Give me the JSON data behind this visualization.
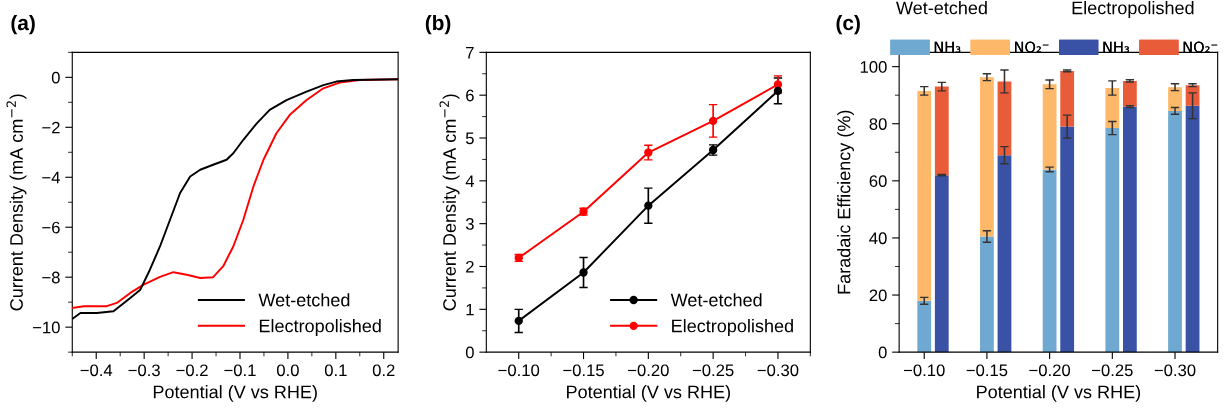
{
  "chart_data": [
    {
      "type": "line",
      "title": "(a)",
      "xlabel": "Potential (V vs RHE)",
      "ylabel": "Current Density (mA cm$^{−2}$)",
      "legend": "bottom right",
      "xlim": [
        -0.45,
        0.23
      ],
      "ylim": [
        -11,
        1
      ],
      "xticks": [
        {
          "value": -0.45,
          "label": null
        },
        {
          "value": -0.4,
          "label": "−0.4"
        },
        {
          "value": -0.35,
          "label": null
        },
        {
          "value": -0.3,
          "label": "−0.3"
        },
        {
          "value": -0.25,
          "label": null
        },
        {
          "value": -0.2,
          "label": "−0.2"
        },
        {
          "value": -0.15,
          "label": null
        },
        {
          "value": -0.1,
          "label": "−0.1"
        },
        {
          "value": -0.05,
          "label": null
        },
        {
          "value": 0.0,
          "label": "0.0"
        },
        {
          "value": 0.05,
          "label": null
        },
        {
          "value": 0.1,
          "label": "0.1"
        },
        {
          "value": 0.15,
          "label": null
        },
        {
          "value": 0.2,
          "label": "0.2"
        }
      ],
      "yticks": [
        {
          "value": -11,
          "label": null
        },
        {
          "value": -10,
          "label": "−10"
        },
        {
          "value": -9,
          "label": null
        },
        {
          "value": -8,
          "label": "−8"
        },
        {
          "value": -7,
          "label": null
        },
        {
          "value": -6,
          "label": "−6"
        },
        {
          "value": -5,
          "label": null
        },
        {
          "value": -4,
          "label": "−4"
        },
        {
          "value": -3,
          "label": null
        },
        {
          "value": -2,
          "label": "−2"
        },
        {
          "value": -1,
          "label": null
        },
        {
          "value": 0,
          "label": "0"
        },
        {
          "value": 1,
          "label": null
        }
      ],
      "series": [
        {
          "name": "Wet-etched",
          "color": "#000000",
          "x": [
            -0.45,
            -0.433,
            -0.399,
            -0.364,
            -0.329,
            -0.308,
            -0.288,
            -0.267,
            -0.246,
            -0.225,
            -0.204,
            -0.183,
            -0.156,
            -0.128,
            -0.114,
            -0.093,
            -0.065,
            -0.038,
            -0.003,
            0.039,
            0.074,
            0.101,
            0.136,
            0.23
          ],
          "values": [
            -9.67,
            -9.43,
            -9.43,
            -9.36,
            -8.83,
            -8.5,
            -7.7,
            -6.77,
            -5.7,
            -4.63,
            -3.97,
            -3.7,
            -3.5,
            -3.3,
            -3.04,
            -2.5,
            -1.84,
            -1.3,
            -0.91,
            -0.57,
            -0.31,
            -0.17,
            -0.11,
            -0.08
          ]
        },
        {
          "name": "Electropolished",
          "color": "#ff0000",
          "x": [
            -0.45,
            -0.426,
            -0.378,
            -0.357,
            -0.329,
            -0.301,
            -0.267,
            -0.239,
            -0.211,
            -0.183,
            -0.156,
            -0.135,
            -0.114,
            -0.093,
            -0.072,
            -0.051,
            -0.024,
            0.004,
            0.039,
            0.074,
            0.108,
            0.15,
            0.23
          ],
          "values": [
            -9.23,
            -9.16,
            -9.16,
            -9.03,
            -8.63,
            -8.3,
            -7.99,
            -7.8,
            -7.9,
            -8.03,
            -8.0,
            -7.56,
            -6.77,
            -5.7,
            -4.37,
            -3.3,
            -2.24,
            -1.5,
            -0.91,
            -0.44,
            -0.21,
            -0.11,
            -0.08
          ]
        }
      ]
    },
    {
      "type": "line",
      "title": "(b)",
      "xlabel": "Potential (V vs RHE)",
      "ylabel": "Current Density (mA cm$^{−2}$)",
      "legend": "bottom right",
      "marker": "circle",
      "line_style": "solid",
      "x": [
        -0.1,
        -0.15,
        -0.2,
        -0.25,
        -0.3
      ],
      "xlim": [
        -0.075,
        -0.325
      ],
      "ylim": [
        0,
        7
      ],
      "xticks": [
        {
          "value": -0.1,
          "label": "−0.10"
        },
        {
          "value": -0.125,
          "label": null
        },
        {
          "value": -0.15,
          "label": "−0.15"
        },
        {
          "value": -0.175,
          "label": null
        },
        {
          "value": -0.2,
          "label": "−0.20"
        },
        {
          "value": -0.225,
          "label": null
        },
        {
          "value": -0.25,
          "label": "−0.25"
        },
        {
          "value": -0.275,
          "label": null
        },
        {
          "value": -0.3,
          "label": "−0.30"
        },
        {
          "value": -0.325,
          "label": null
        }
      ],
      "yticks": [
        0,
        {
          "value": 0.5,
          "label": null
        },
        1,
        {
          "value": 1.5,
          "label": null
        },
        2,
        {
          "value": 2.5,
          "label": null
        },
        3,
        {
          "value": 3.5,
          "label": null
        },
        4,
        {
          "value": 4.5,
          "label": null
        },
        5,
        {
          "value": 5.5,
          "label": null
        },
        6,
        {
          "value": 6.5,
          "label": null
        },
        7
      ],
      "series": [
        {
          "name": "Wet-etched",
          "color": "#000000",
          "values": [
            0.73,
            1.86,
            3.42,
            4.72,
            6.1
          ],
          "errors": [
            0.27,
            0.35,
            0.41,
            0.12,
            0.3
          ]
        },
        {
          "name": "Electropolished",
          "color": "#ff0000",
          "values": [
            2.2,
            3.28,
            4.66,
            5.4,
            6.25
          ],
          "errors": [
            0.08,
            0.08,
            0.17,
            0.38,
            0.2
          ]
        }
      ]
    },
    {
      "type": "bar",
      "title": "(c)",
      "xlabel": "Potential (V vs RHE)",
      "ylabel": "Faradaic Efficiency (%)",
      "legend": "top",
      "stacked": true,
      "annotations": [
        "Wet-etched",
        "Electropolished"
      ],
      "categories": [
        "−0.10",
        null,
        "−0.15",
        null,
        "−0.20",
        null,
        "−0.25",
        null,
        "−0.30",
        null
      ],
      "ylim": [
        0,
        105
      ],
      "yticks": [
        0,
        {
          "value": 10,
          "label": null
        },
        20,
        {
          "value": 30,
          "label": null
        },
        40,
        {
          "value": 50,
          "label": null
        },
        60,
        {
          "value": 70,
          "label": null
        },
        80,
        {
          "value": 90,
          "label": null
        },
        100
      ],
      "series": [
        {
          "name": "NH₃",
          "colors": [
            "#6fa8d0",
            "#3a52a5",
            "#6fa8d0",
            "#3a52a5",
            "#6fa8d0",
            "#3a52a5",
            "#6fa8d0",
            "#3a52a5",
            "#6fa8d0",
            "#3a52a5"
          ],
          "values": [
            18,
            62,
            40.5,
            69,
            64,
            79,
            78.5,
            86,
            84.5,
            86.3
          ],
          "errors": [
            1.2,
            0.2,
            2,
            3,
            0.8,
            4,
            2.3,
            0.3,
            1.2,
            4.5
          ]
        },
        {
          "name": "NO₂⁻",
          "colors": [
            "#fdb869",
            "#e85c3a",
            "#fdb869",
            "#e85c3a",
            "#fdb869",
            "#e85c3a",
            "#fdb869",
            "#e85c3a",
            "#fdb869",
            "#e85c3a"
          ],
          "values": [
            73.5,
            31,
            55.8,
            25.8,
            29.8,
            19.5,
            14,
            9,
            8.3,
            7.2
          ],
          "errors": [
            1.5,
            1.5,
            1.2,
            4,
            1.5,
            0.3,
            2.5,
            0.4,
            1.2,
            0.5
          ]
        }
      ]
    }
  ]
}
